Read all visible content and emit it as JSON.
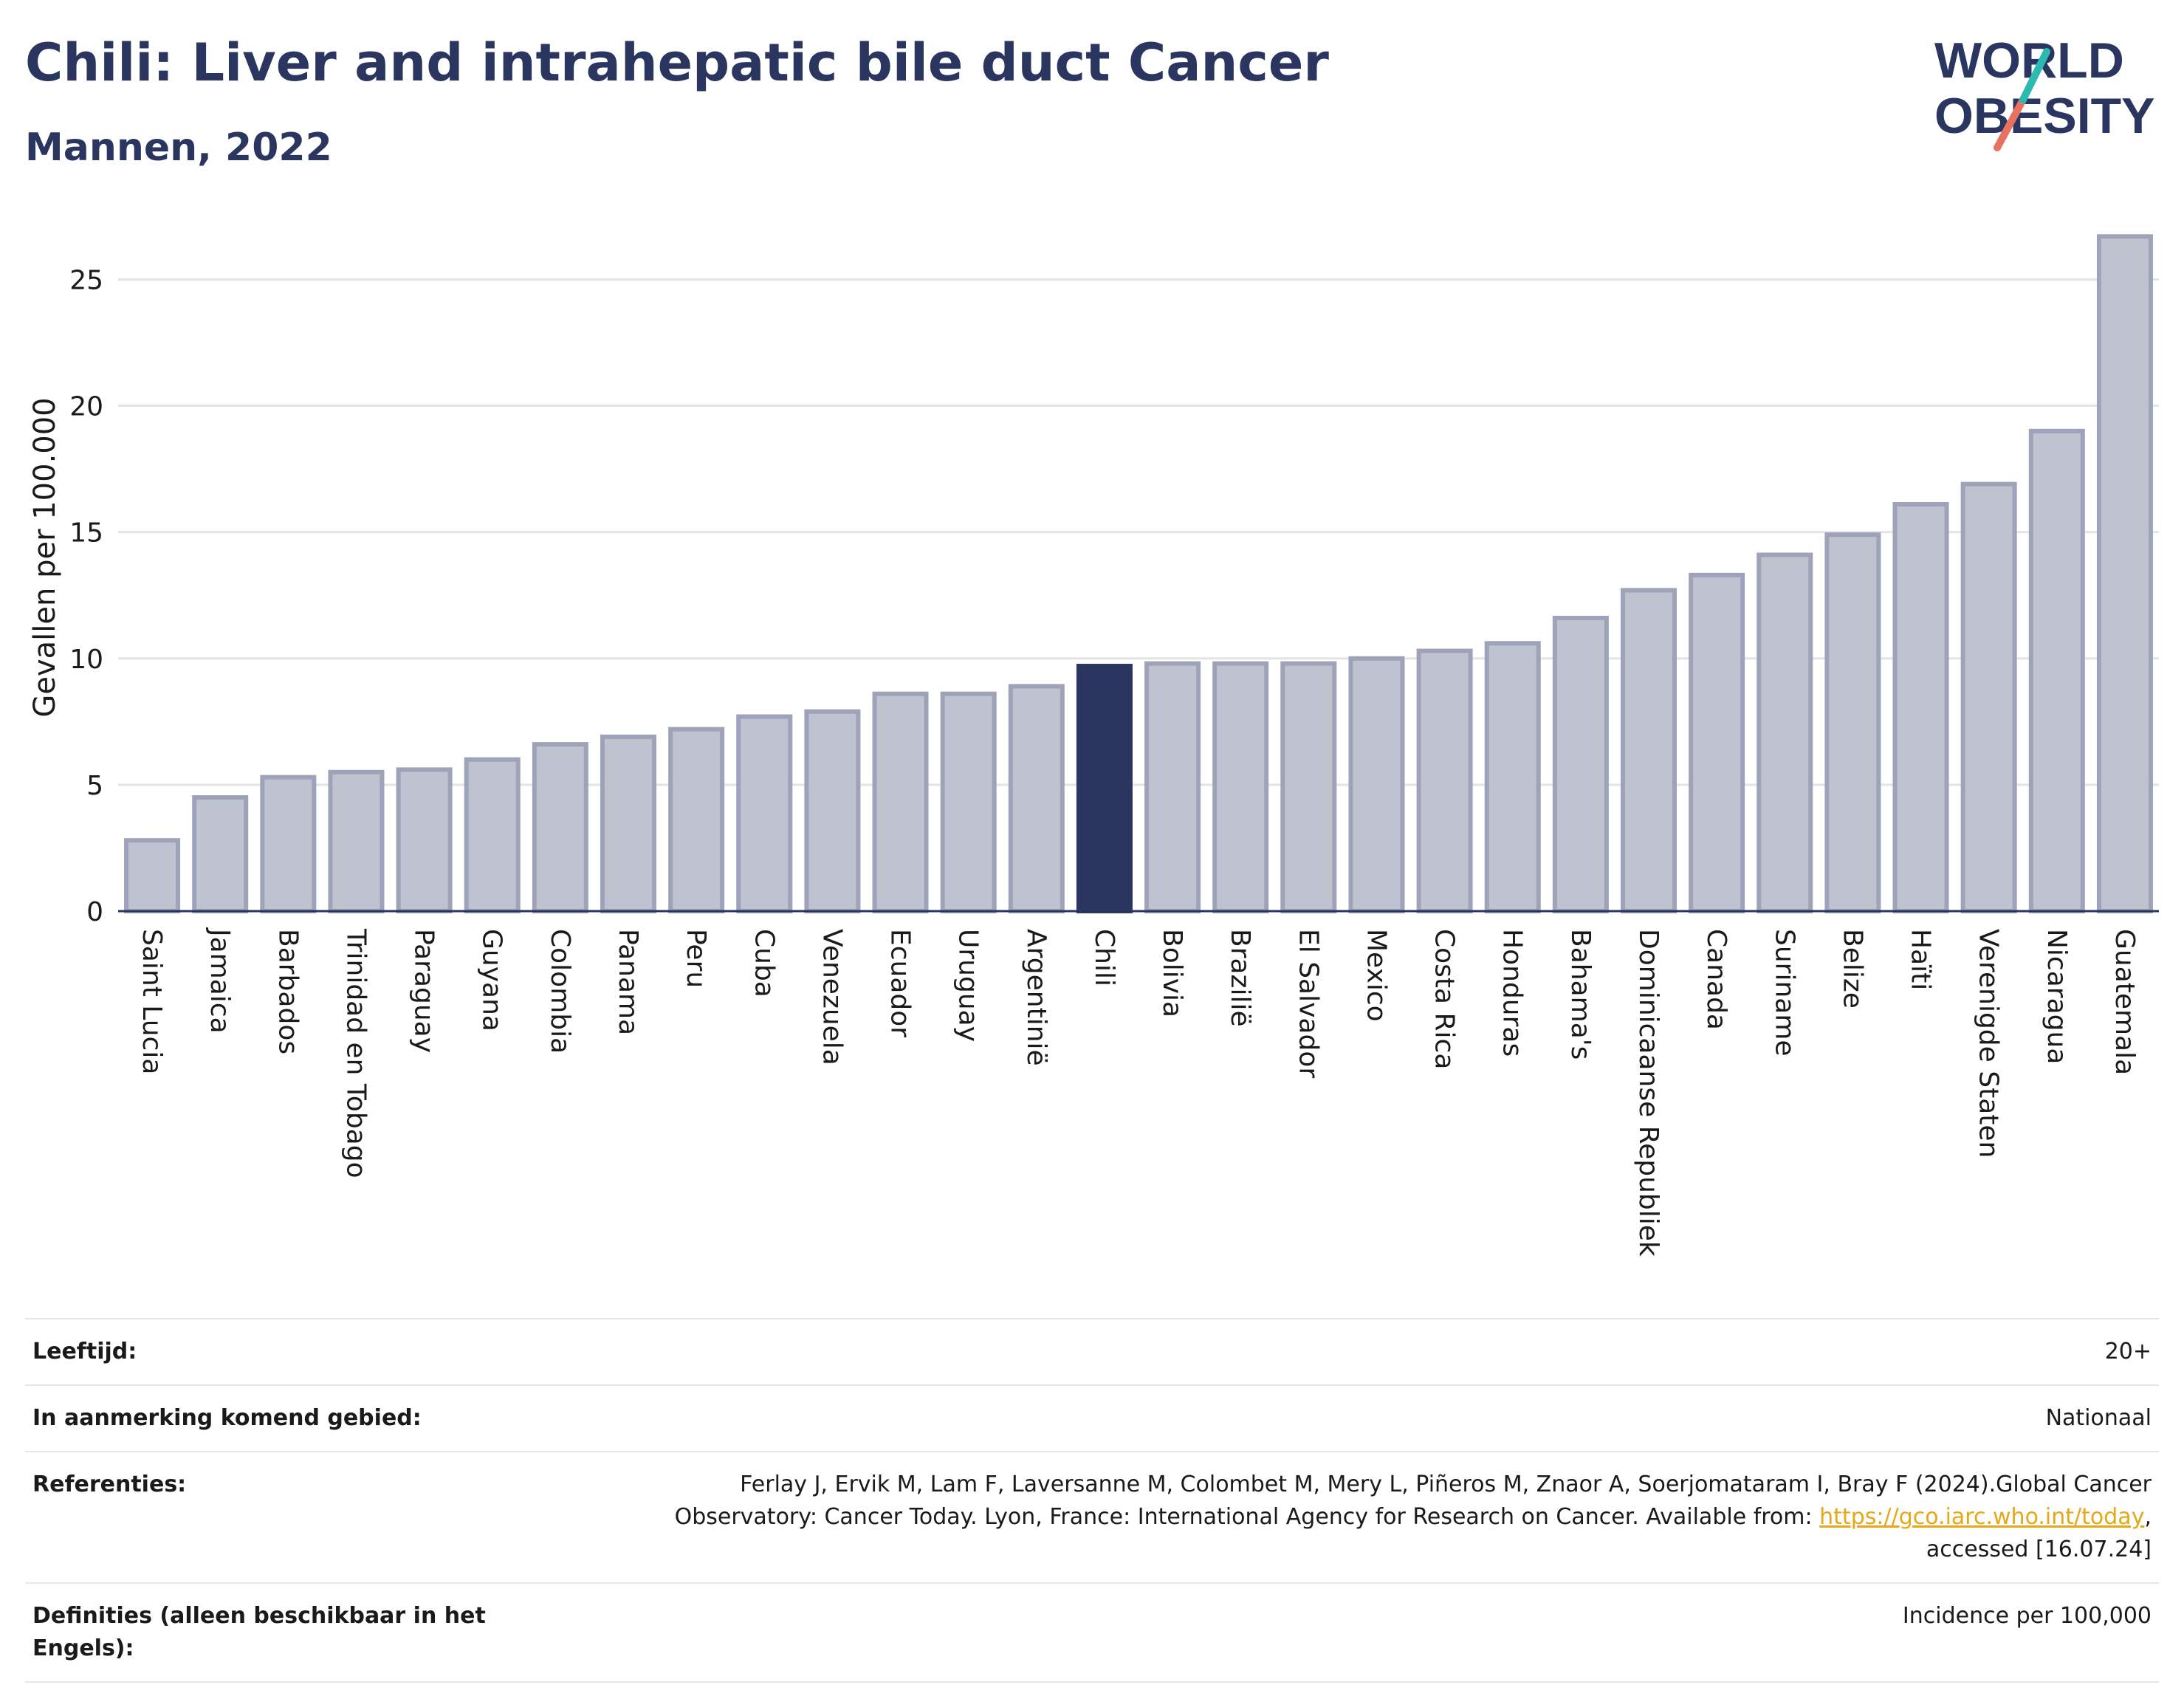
{
  "title": "Chili: Liver and intrahepatic bile duct Cancer",
  "subtitle": "Mannen, 2022",
  "logo": {
    "line1": "WORLD",
    "line2": "OBESITY",
    "accent_colors": [
      "#2bb9b0",
      "#e8715f"
    ]
  },
  "colors": {
    "highlight": "#2a3560",
    "bar": "#bfc2cf",
    "bar_border": "#9ea3ba",
    "axis_text": "#1a1a1a"
  },
  "chart_data": {
    "type": "bar",
    "ylabel": "Gevallen per 100.000",
    "xlabel": "",
    "ylim": [
      0,
      27
    ],
    "yticks": [
      0,
      5,
      10,
      15,
      20,
      25
    ],
    "grid": true,
    "highlight": "Chili",
    "categories": [
      "Saint Lucia",
      "Jamaica",
      "Barbados",
      "Trinidad en Tobago",
      "Paraguay",
      "Guyana",
      "Colombia",
      "Panama",
      "Peru",
      "Cuba",
      "Venezuela",
      "Ecuador",
      "Uruguay",
      "Argentinië",
      "Chili",
      "Bolivia",
      "Brazilië",
      "El Salvador",
      "Mexico",
      "Costa Rica",
      "Honduras",
      "Bahama's",
      "Dominicaanse Republiek",
      "Canada",
      "Suriname",
      "Belize",
      "Haïti",
      "Verenigde Staten",
      "Nicaragua",
      "Guatemala"
    ],
    "values": [
      2.8,
      4.5,
      5.3,
      5.5,
      5.6,
      6.0,
      6.6,
      6.9,
      7.2,
      7.7,
      7.9,
      8.6,
      8.6,
      8.9,
      9.7,
      9.8,
      9.8,
      9.8,
      10.0,
      10.3,
      10.6,
      11.6,
      12.7,
      13.3,
      14.1,
      14.9,
      16.1,
      16.9,
      19.0,
      26.7
    ]
  },
  "info": {
    "age_label": "Leeftijd:",
    "age_value": "20+",
    "area_label": "In aanmerking komend gebied:",
    "area_value": "Nationaal",
    "ref_label": "Referenties:",
    "ref_text_1": "Ferlay J, Ervik M, Lam F, Laversanne M, Colombet M, Mery L, Piñeros M, Znaor A, Soerjomataram I, Bray F (2024).Global Cancer",
    "ref_text_2": "Observatory: Cancer Today. Lyon, France: International Agency for Research on Cancer. Available from: ",
    "ref_link": "https://gco.iarc.who.int/today",
    "ref_text_3": ",",
    "ref_text_4": "accessed [16.07.24]",
    "def_label": "Definities (alleen beschikbaar in het Engels):",
    "def_value": "Incidence per 100,000"
  }
}
